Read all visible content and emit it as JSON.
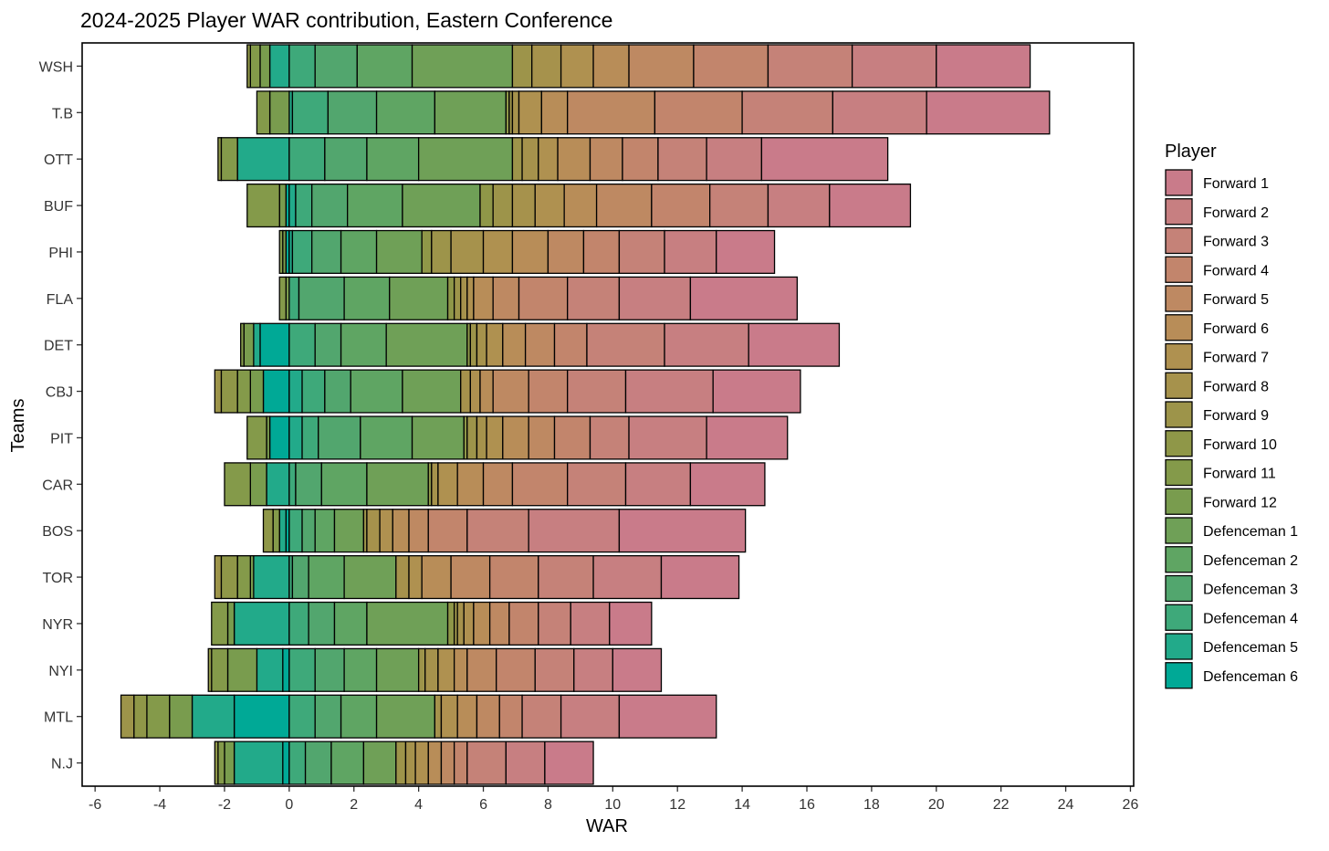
{
  "chart_data": {
    "type": "bar",
    "orientation": "horizontal",
    "stacked": true,
    "title": "2024-2025 Player WAR contribution, Eastern Conference",
    "xlabel": "WAR",
    "ylabel": "Teams",
    "xlim": [
      -6.4,
      26.1
    ],
    "x_ticks": [
      -6,
      -4,
      -2,
      0,
      2,
      4,
      6,
      8,
      10,
      12,
      14,
      16,
      18,
      20,
      22,
      24,
      26
    ],
    "grid": false,
    "legend": {
      "title": "Player",
      "position": "right"
    },
    "series_names": [
      "Forward 1",
      "Forward 2",
      "Forward 3",
      "Forward 4",
      "Forward 5",
      "Forward 6",
      "Forward 7",
      "Forward 8",
      "Forward 9",
      "Forward 10",
      "Forward 11",
      "Forward 12",
      "Defenceman 1",
      "Defenceman 2",
      "Defenceman 3",
      "Defenceman 4",
      "Defenceman 5",
      "Defenceman 6"
    ],
    "colors": [
      "#C97B8A",
      "#C77F81",
      "#C58278",
      "#C2856C",
      "#BE8962",
      "#B88D58",
      "#AF9150",
      "#A6924C",
      "#9D944A",
      "#8F9748",
      "#849A4A",
      "#799C4E",
      "#6FA057",
      "#5FA563",
      "#52A66E",
      "#3EA97A",
      "#22AA8A",
      "#00A996"
    ],
    "teams": [
      "WSH",
      "T.B",
      "OTT",
      "BUF",
      "PHI",
      "FLA",
      "DET",
      "CBJ",
      "PIT",
      "CAR",
      "BOS",
      "TOR",
      "NYR",
      "NYI",
      "MTL",
      "N.J"
    ],
    "values_by_team": [
      [
        2.9,
        2.6,
        2.6,
        2.3,
        2.0,
        1.1,
        1.0,
        0.9,
        0.6,
        -0.1,
        -0.3,
        -0.3,
        3.1,
        1.7,
        1.3,
        0.8,
        -0.6,
        0.0
      ],
      [
        3.8,
        2.9,
        2.8,
        2.7,
        2.7,
        0.8,
        0.7,
        0.2,
        0.1,
        0.1,
        -0.4,
        -0.6,
        2.2,
        1.8,
        1.5,
        1.1,
        0.1,
        0.0
      ],
      [
        3.9,
        1.7,
        1.5,
        1.1,
        1.0,
        1.0,
        0.6,
        0.5,
        0.3,
        -0.1,
        -0.5,
        0.0,
        2.9,
        1.6,
        1.3,
        1.1,
        -1.6,
        0.0
      ],
      [
        2.5,
        1.9,
        1.8,
        1.8,
        1.7,
        1.0,
        0.9,
        0.7,
        0.6,
        0.4,
        -1.0,
        -0.2,
        2.4,
        1.7,
        1.1,
        0.5,
        0.2,
        -0.1
      ],
      [
        1.8,
        1.6,
        1.4,
        1.1,
        1.1,
        1.1,
        0.9,
        1.0,
        0.6,
        0.3,
        -0.1,
        -0.1,
        1.4,
        1.1,
        0.9,
        0.6,
        0.1,
        -0.1
      ],
      [
        3.3,
        2.2,
        1.6,
        1.5,
        0.8,
        0.6,
        0.2,
        0.2,
        0.2,
        0.2,
        -0.2,
        -0.1,
        1.8,
        1.4,
        1.4,
        0.3,
        0.0,
        0.0
      ],
      [
        2.8,
        2.6,
        2.4,
        1.0,
        0.9,
        0.7,
        0.5,
        0.3,
        0.2,
        0.1,
        -0.1,
        -0.3,
        2.5,
        1.4,
        0.8,
        0.8,
        -0.2,
        -0.9
      ],
      [
        2.7,
        2.7,
        1.8,
        1.2,
        1.1,
        0.4,
        0.3,
        0.3,
        -0.2,
        -0.5,
        -0.4,
        -0.4,
        1.8,
        1.6,
        0.8,
        0.7,
        0.4,
        -0.8
      ],
      [
        2.5,
        2.4,
        1.2,
        1.1,
        0.8,
        0.8,
        0.5,
        0.3,
        0.3,
        0.1,
        -0.6,
        -0.1,
        1.6,
        1.6,
        1.3,
        0.5,
        0.4,
        -0.6
      ],
      [
        2.3,
        2.0,
        1.8,
        1.7,
        0.9,
        0.8,
        0.6,
        0.2,
        0.0,
        0.1,
        -0.8,
        -0.5,
        1.9,
        1.4,
        0.8,
        0.2,
        -0.7,
        0.0
      ],
      [
        3.9,
        2.8,
        1.9,
        1.2,
        0.6,
        0.5,
        0.4,
        0.4,
        0.1,
        -0.3,
        -0.2,
        0.0,
        0.9,
        0.6,
        0.4,
        0.4,
        -0.2,
        -0.1
      ],
      [
        2.4,
        2.1,
        1.7,
        1.5,
        1.2,
        0.9,
        0.4,
        0.4,
        -0.2,
        -0.5,
        -0.4,
        -0.1,
        1.6,
        1.1,
        0.5,
        0.1,
        -1.1,
        0.0
      ],
      [
        1.3,
        1.2,
        1.0,
        0.9,
        0.6,
        0.5,
        0.3,
        0.2,
        0.1,
        0.2,
        -0.5,
        -0.2,
        2.5,
        1.0,
        0.8,
        0.6,
        -1.7,
        0.0
      ],
      [
        1.5,
        1.2,
        1.2,
        1.2,
        0.9,
        0.4,
        0.5,
        0.4,
        0.2,
        -0.1,
        -0.5,
        -0.9,
        1.3,
        1.0,
        0.9,
        0.8,
        -0.8,
        -0.2
      ],
      [
        3.0,
        1.8,
        1.2,
        0.7,
        0.7,
        0.6,
        0.5,
        0.2,
        -0.4,
        -0.4,
        -0.7,
        -0.7,
        1.8,
        1.1,
        0.8,
        0.8,
        -1.3,
        -1.7
      ],
      [
        1.5,
        1.2,
        1.2,
        0.4,
        0.4,
        0.4,
        0.4,
        0.3,
        0.3,
        -0.1,
        -0.2,
        -0.3,
        1.0,
        1.0,
        0.8,
        0.5,
        -1.5,
        -0.2
      ]
    ]
  }
}
